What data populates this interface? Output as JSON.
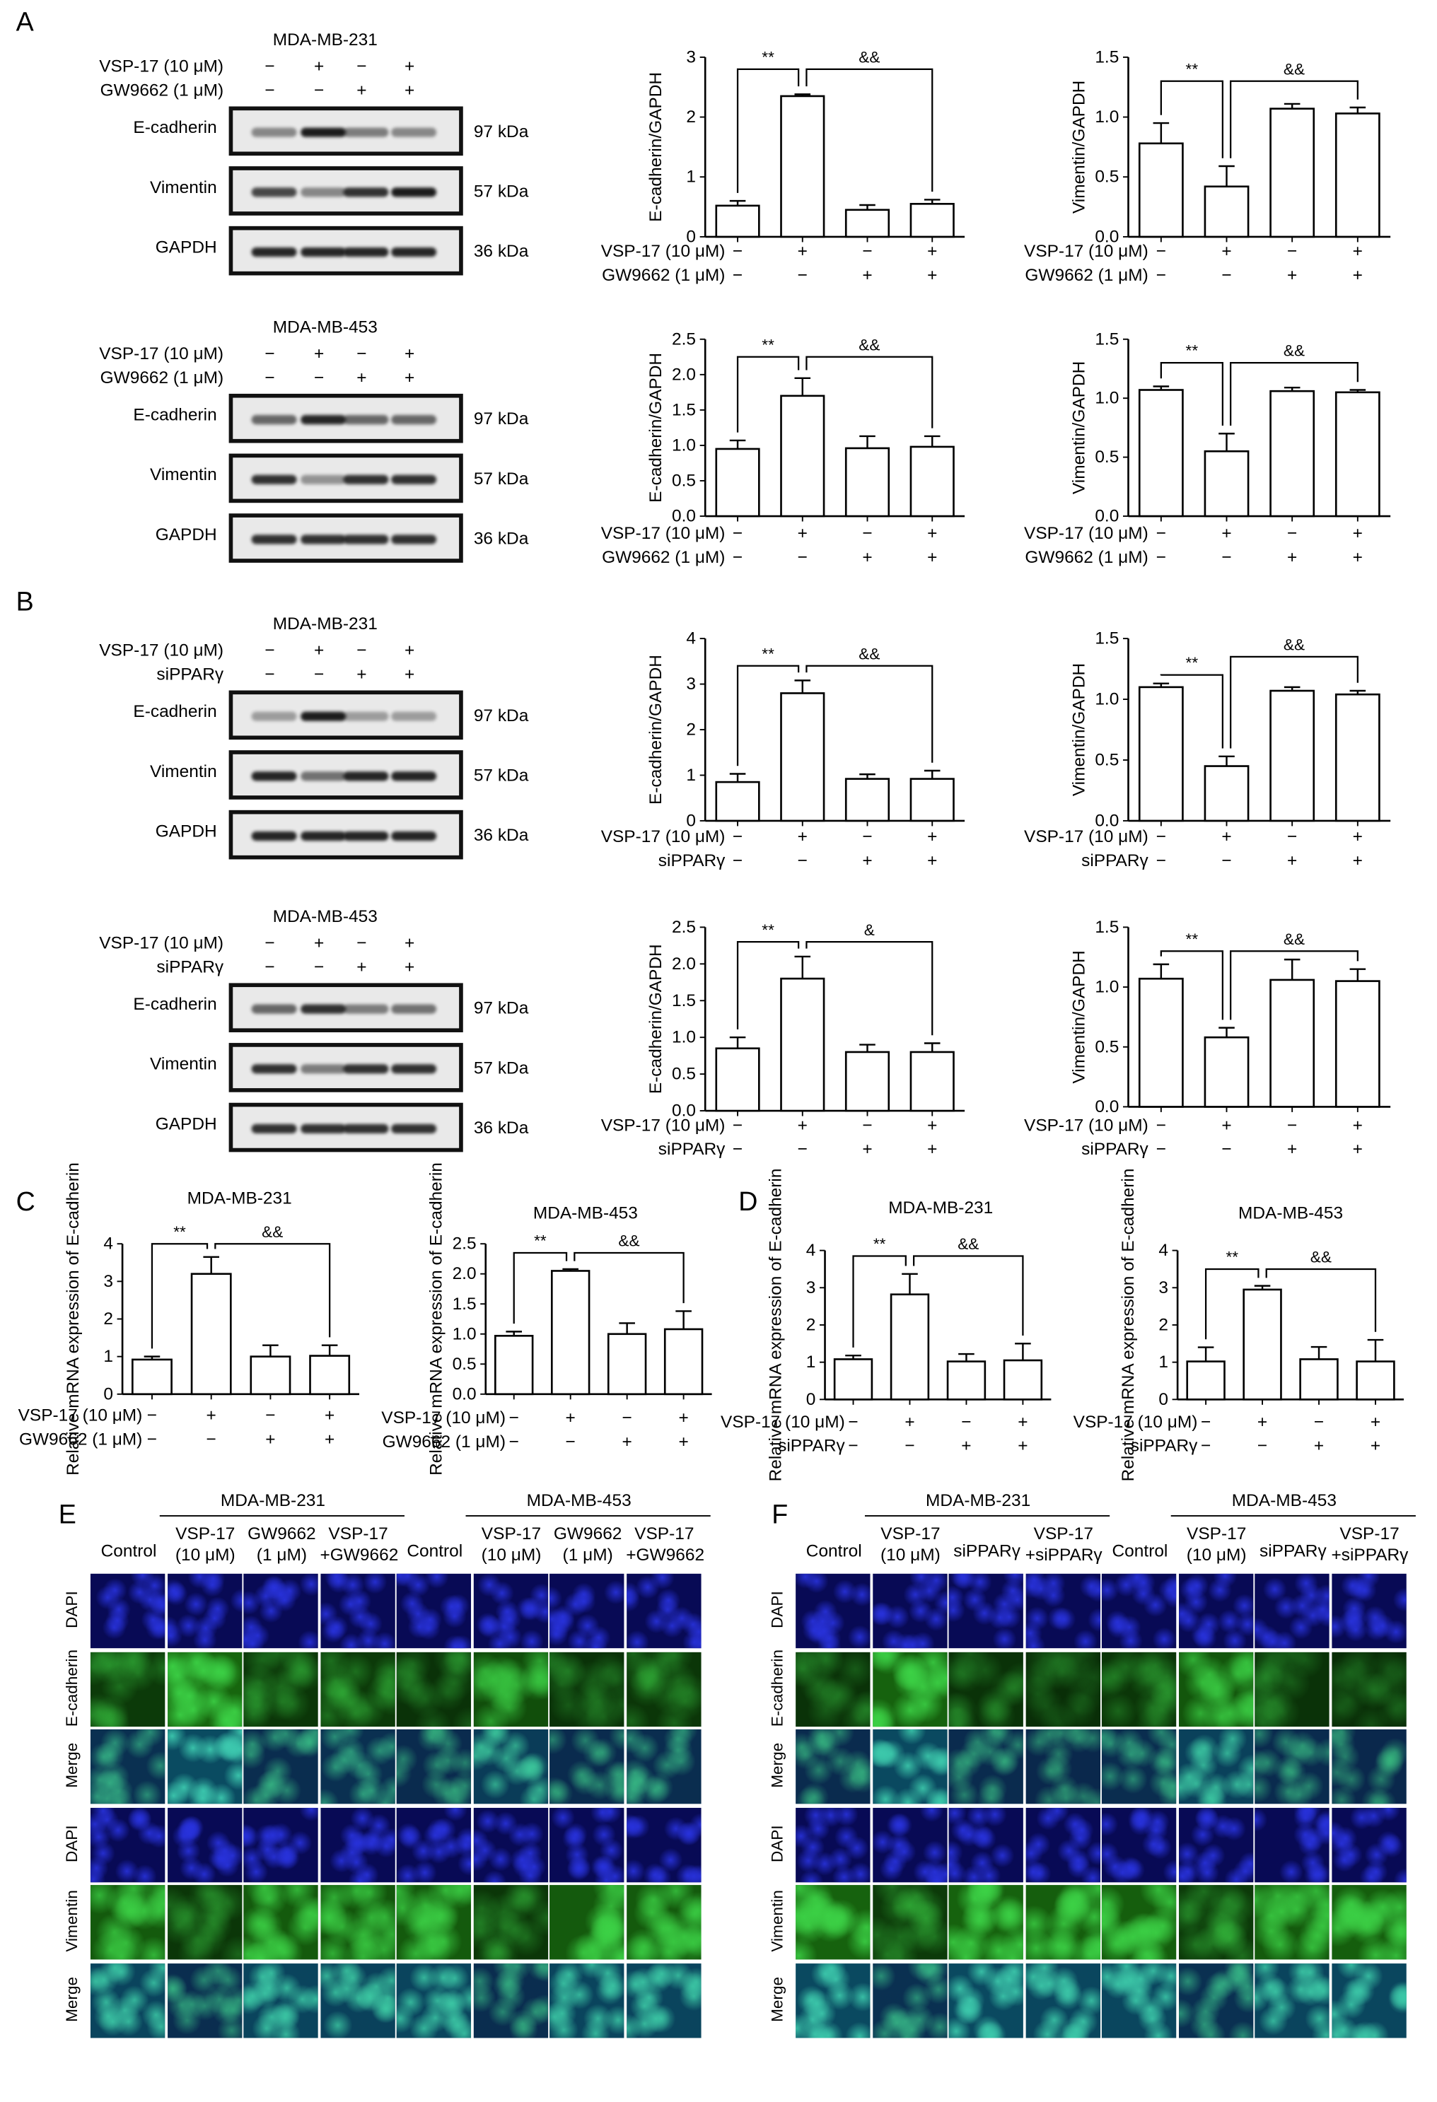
{
  "panel_letters": {
    "A": "A",
    "B": "B",
    "C": "C",
    "D": "D",
    "E": "E",
    "F": "F"
  },
  "blots": [
    {
      "title": "MDA-MB-231",
      "rows": [
        {
          "label": "VSP-17 (10 μM)",
          "signs": [
            "−",
            "+",
            "−",
            "+"
          ]
        },
        {
          "label": "GW9662 (1 μM)",
          "signs": [
            "−",
            "−",
            "+",
            "+"
          ]
        }
      ],
      "bands": [
        {
          "label": "E-cadherin",
          "kda": "97 kDa",
          "intensity": [
            0.45,
            0.95,
            0.5,
            0.45
          ]
        },
        {
          "label": "Vimentin",
          "kda": "57 kDa",
          "intensity": [
            0.75,
            0.45,
            0.85,
            0.95
          ]
        },
        {
          "label": "GAPDH",
          "kda": "36 kDa",
          "intensity": [
            0.9,
            0.9,
            0.9,
            0.9
          ]
        }
      ]
    },
    {
      "title": "MDA-MB-453",
      "rows": [
        {
          "label": "VSP-17 (10 μM)",
          "signs": [
            "−",
            "+",
            "−",
            "+"
          ]
        },
        {
          "label": "GW9662 (1 μM)",
          "signs": [
            "−",
            "−",
            "+",
            "+"
          ]
        }
      ],
      "bands": [
        {
          "label": "E-cadherin",
          "kda": "97 kDa",
          "intensity": [
            0.6,
            0.9,
            0.6,
            0.6
          ]
        },
        {
          "label": "Vimentin",
          "kda": "57 kDa",
          "intensity": [
            0.85,
            0.4,
            0.85,
            0.85
          ]
        },
        {
          "label": "GAPDH",
          "kda": "36 kDa",
          "intensity": [
            0.85,
            0.85,
            0.85,
            0.85
          ]
        }
      ]
    },
    {
      "title": "MDA-MB-231",
      "rows": [
        {
          "label": "VSP-17 (10 μM)",
          "signs": [
            "−",
            "+",
            "−",
            "+"
          ]
        },
        {
          "label": "siPPARγ",
          "signs": [
            "−",
            "−",
            "+",
            "+"
          ]
        }
      ],
      "bands": [
        {
          "label": "E-cadherin",
          "kda": "97 kDa",
          "intensity": [
            0.35,
            0.95,
            0.35,
            0.35
          ]
        },
        {
          "label": "Vimentin",
          "kda": "57 kDa",
          "intensity": [
            0.9,
            0.55,
            0.9,
            0.9
          ]
        },
        {
          "label": "GAPDH",
          "kda": "36 kDa",
          "intensity": [
            0.9,
            0.9,
            0.9,
            0.9
          ]
        }
      ]
    },
    {
      "title": "MDA-MB-453",
      "rows": [
        {
          "label": "VSP-17 (10 μM)",
          "signs": [
            "−",
            "+",
            "−",
            "+"
          ]
        },
        {
          "label": "siPPARγ",
          "signs": [
            "−",
            "−",
            "+",
            "+"
          ]
        }
      ],
      "bands": [
        {
          "label": "E-cadherin",
          "kda": "97 kDa",
          "intensity": [
            0.6,
            0.85,
            0.5,
            0.55
          ]
        },
        {
          "label": "Vimentin",
          "kda": "57 kDa",
          "intensity": [
            0.85,
            0.5,
            0.85,
            0.85
          ]
        },
        {
          "label": "GAPDH",
          "kda": "36 kDa",
          "intensity": [
            0.85,
            0.85,
            0.85,
            0.85
          ]
        }
      ]
    }
  ],
  "chart_data": [
    {
      "type": "bar",
      "panel": "A",
      "ylabel": "E-cadherin/GAPDH",
      "ylim": [
        0,
        3
      ],
      "yticks": [
        "0",
        "1",
        "2",
        "3"
      ],
      "values": [
        0.52,
        2.35,
        0.45,
        0.55
      ],
      "errors": [
        0.08,
        0.03,
        0.08,
        0.07
      ],
      "rows": [
        {
          "label": "VSP-17 (10 μM)",
          "signs": [
            "−",
            "+",
            "−",
            "+"
          ]
        },
        {
          "label": "GW9662 (1 μM)",
          "signs": [
            "−",
            "−",
            "+",
            "+"
          ]
        }
      ],
      "sig": [
        {
          "text": "**",
          "from": 0,
          "to": 1,
          "y": 2.8
        },
        {
          "text": "&&",
          "from": 1,
          "to": 3,
          "y": 2.8
        }
      ]
    },
    {
      "type": "bar",
      "panel": "A",
      "ylabel": "Vimentin/GAPDH",
      "ylim": [
        0,
        1.5
      ],
      "yticks": [
        "0.0",
        "0.5",
        "1.0",
        "1.5"
      ],
      "values": [
        0.78,
        0.42,
        1.07,
        1.03
      ],
      "errors": [
        0.17,
        0.17,
        0.04,
        0.05
      ],
      "rows": [
        {
          "label": "VSP-17 (10 μM)",
          "signs": [
            "−",
            "+",
            "−",
            "+"
          ]
        },
        {
          "label": "GW9662 (1 μM)",
          "signs": [
            "−",
            "−",
            "+",
            "+"
          ]
        }
      ],
      "sig": [
        {
          "text": "**",
          "from": 0,
          "to": 1,
          "y": 1.3
        },
        {
          "text": "&&",
          "from": 1,
          "to": 3,
          "y": 1.3
        }
      ]
    },
    {
      "type": "bar",
      "panel": "A",
      "ylabel": "E-cadherin/GAPDH",
      "ylim": [
        0,
        2.5
      ],
      "yticks": [
        "0.0",
        "0.5",
        "1.0",
        "1.5",
        "2.0",
        "2.5"
      ],
      "values": [
        0.95,
        1.7,
        0.96,
        0.98
      ],
      "errors": [
        0.12,
        0.25,
        0.17,
        0.15
      ],
      "rows": [
        {
          "label": "VSP-17 (10 μM)",
          "signs": [
            "−",
            "+",
            "−",
            "+"
          ]
        },
        {
          "label": "GW9662 (1 μM)",
          "signs": [
            "−",
            "−",
            "+",
            "+"
          ]
        }
      ],
      "sig": [
        {
          "text": "**",
          "from": 0,
          "to": 1,
          "y": 2.25
        },
        {
          "text": "&&",
          "from": 1,
          "to": 3,
          "y": 2.25
        }
      ]
    },
    {
      "type": "bar",
      "panel": "A",
      "ylabel": "Vimentin/GAPDH",
      "ylim": [
        0,
        1.5
      ],
      "yticks": [
        "0.0",
        "0.5",
        "1.0",
        "1.5"
      ],
      "values": [
        1.07,
        0.55,
        1.06,
        1.05
      ],
      "errors": [
        0.03,
        0.15,
        0.03,
        0.02
      ],
      "rows": [
        {
          "label": "VSP-17 (10 μM)",
          "signs": [
            "−",
            "+",
            "−",
            "+"
          ]
        },
        {
          "label": "GW9662 (1 μM)",
          "signs": [
            "−",
            "−",
            "+",
            "+"
          ]
        }
      ],
      "sig": [
        {
          "text": "**",
          "from": 0,
          "to": 1,
          "y": 1.3
        },
        {
          "text": "&&",
          "from": 1,
          "to": 3,
          "y": 1.3
        }
      ]
    },
    {
      "type": "bar",
      "panel": "B",
      "ylabel": "E-cadherin/GAPDH",
      "ylim": [
        0,
        4
      ],
      "yticks": [
        "0",
        "1",
        "2",
        "3",
        "4"
      ],
      "values": [
        0.85,
        2.8,
        0.92,
        0.92
      ],
      "errors": [
        0.18,
        0.28,
        0.1,
        0.18
      ],
      "rows": [
        {
          "label": "VSP-17 (10 μM)",
          "signs": [
            "−",
            "+",
            "−",
            "+"
          ]
        },
        {
          "label": "siPPARγ",
          "signs": [
            "−",
            "−",
            "+",
            "+"
          ]
        }
      ],
      "sig": [
        {
          "text": "**",
          "from": 0,
          "to": 1,
          "y": 3.4
        },
        {
          "text": "&&",
          "from": 1,
          "to": 3,
          "y": 3.4
        }
      ]
    },
    {
      "type": "bar",
      "panel": "B",
      "ylabel": "Vimentin/GAPDH",
      "ylim": [
        0,
        1.5
      ],
      "yticks": [
        "0.0",
        "0.5",
        "1.0",
        "1.5"
      ],
      "values": [
        1.1,
        0.45,
        1.07,
        1.04
      ],
      "errors": [
        0.03,
        0.08,
        0.03,
        0.03
      ],
      "rows": [
        {
          "label": "VSP-17 (10 μM)",
          "signs": [
            "−",
            "+",
            "−",
            "+"
          ]
        },
        {
          "label": "siPPARγ",
          "signs": [
            "−",
            "−",
            "+",
            "+"
          ]
        }
      ],
      "sig": [
        {
          "text": "**",
          "from": 0,
          "to": 1,
          "y": 1.2
        },
        {
          "text": "&&",
          "from": 1,
          "to": 3,
          "y": 1.35
        }
      ]
    },
    {
      "type": "bar",
      "panel": "B",
      "ylabel": "E-cadherin/GAPDH",
      "ylim": [
        0,
        2.5
      ],
      "yticks": [
        "0.0",
        "0.5",
        "1.0",
        "1.5",
        "2.0",
        "2.5"
      ],
      "values": [
        0.85,
        1.8,
        0.8,
        0.8
      ],
      "errors": [
        0.15,
        0.3,
        0.1,
        0.12
      ],
      "rows": [
        {
          "label": "VSP-17 (10 μM)",
          "signs": [
            "−",
            "+",
            "−",
            "+"
          ]
        },
        {
          "label": "siPPARγ",
          "signs": [
            "−",
            "−",
            "+",
            "+"
          ]
        }
      ],
      "sig": [
        {
          "text": "**",
          "from": 0,
          "to": 1,
          "y": 2.3
        },
        {
          "text": "&",
          "from": 1,
          "to": 3,
          "y": 2.3
        }
      ]
    },
    {
      "type": "bar",
      "panel": "B",
      "ylabel": "Vimentin/GAPDH",
      "ylim": [
        0,
        1.5
      ],
      "yticks": [
        "0.0",
        "0.5",
        "1.0",
        "1.5"
      ],
      "values": [
        1.07,
        0.58,
        1.06,
        1.05
      ],
      "errors": [
        0.12,
        0.08,
        0.17,
        0.1
      ],
      "rows": [
        {
          "label": "VSP-17 (10 μM)",
          "signs": [
            "−",
            "+",
            "−",
            "+"
          ]
        },
        {
          "label": "siPPARγ",
          "signs": [
            "−",
            "−",
            "+",
            "+"
          ]
        }
      ],
      "sig": [
        {
          "text": "**",
          "from": 0,
          "to": 1,
          "y": 1.3
        },
        {
          "text": "&&",
          "from": 1,
          "to": 3,
          "y": 1.3
        }
      ]
    },
    {
      "type": "bar",
      "panel": "C",
      "title": "MDA-MB-231",
      "ylabel": "Relative mRNA expression of E-cadherin",
      "ylim": [
        0,
        4
      ],
      "yticks": [
        "0",
        "1",
        "2",
        "3",
        "4"
      ],
      "values": [
        0.92,
        3.2,
        1.0,
        1.02
      ],
      "errors": [
        0.08,
        0.45,
        0.3,
        0.28
      ],
      "rows": [
        {
          "label": "VSP-17 (10 μM)",
          "signs": [
            "−",
            "+",
            "−",
            "+"
          ]
        },
        {
          "label": "GW9662 (1 μM)",
          "signs": [
            "−",
            "−",
            "+",
            "+"
          ]
        }
      ],
      "sig": [
        {
          "text": "**",
          "from": 0,
          "to": 1,
          "y": 4.0
        },
        {
          "text": "&&",
          "from": 1,
          "to": 3,
          "y": 4.0
        }
      ]
    },
    {
      "type": "bar",
      "panel": "C",
      "title": "MDA-MB-453",
      "ylabel": "Relative mRNA expression of E-cadherin",
      "ylim": [
        0,
        2.5
      ],
      "yticks": [
        "0.0",
        "0.5",
        "1.0",
        "1.5",
        "2.0",
        "2.5"
      ],
      "values": [
        0.97,
        2.05,
        1.0,
        1.08
      ],
      "errors": [
        0.07,
        0.03,
        0.18,
        0.3
      ],
      "rows": [
        {
          "label": "VSP-17 (10 μM)",
          "signs": [
            "−",
            "+",
            "−",
            "+"
          ]
        },
        {
          "label": "GW9662 (1 μM)",
          "signs": [
            "−",
            "−",
            "+",
            "+"
          ]
        }
      ],
      "sig": [
        {
          "text": "**",
          "from": 0,
          "to": 1,
          "y": 2.35
        },
        {
          "text": "&&",
          "from": 1,
          "to": 3,
          "y": 2.35
        }
      ]
    },
    {
      "type": "bar",
      "panel": "D",
      "title": "MDA-MB-231",
      "ylabel": "Relative mRNA expression of E-cadherin",
      "ylim": [
        0,
        4
      ],
      "yticks": [
        "0",
        "1",
        "2",
        "3",
        "4"
      ],
      "values": [
        1.08,
        2.82,
        1.02,
        1.05
      ],
      "errors": [
        0.1,
        0.55,
        0.2,
        0.45
      ],
      "rows": [
        {
          "label": "VSP-17 (10 μM)",
          "signs": [
            "−",
            "+",
            "−",
            "+"
          ]
        },
        {
          "label": "siPPARγ",
          "signs": [
            "−",
            "−",
            "+",
            "+"
          ]
        }
      ],
      "sig": [
        {
          "text": "**",
          "from": 0,
          "to": 1,
          "y": 3.85
        },
        {
          "text": "&&",
          "from": 1,
          "to": 3,
          "y": 3.85
        }
      ]
    },
    {
      "type": "bar",
      "panel": "D",
      "title": "MDA-MB-453",
      "ylabel": "Relative mRNA expression of E-cadherin",
      "ylim": [
        0,
        4
      ],
      "yticks": [
        "0",
        "1",
        "2",
        "3",
        "4"
      ],
      "values": [
        1.02,
        2.95,
        1.08,
        1.02
      ],
      "errors": [
        0.38,
        0.1,
        0.33,
        0.58
      ],
      "rows": [
        {
          "label": "VSP-17 (10 μM)",
          "signs": [
            "−",
            "+",
            "−",
            "+"
          ]
        },
        {
          "label": "siPPARγ",
          "signs": [
            "−",
            "−",
            "+",
            "+"
          ]
        }
      ],
      "sig": [
        {
          "text": "**",
          "from": 0,
          "to": 1,
          "y": 3.5
        },
        {
          "text": "&&",
          "from": 1,
          "to": 3,
          "y": 3.5
        }
      ]
    }
  ],
  "microscopy": [
    {
      "groups": [
        "MDA-MB-231",
        "MDA-MB-453"
      ],
      "columns": [
        "Control",
        "VSP-17\n(10 μM)",
        "GW9662\n(1 μM)",
        "VSP-17\n+GW9662",
        "Control",
        "VSP-17\n(10 μM)",
        "GW9662\n(1 μM)",
        "VSP-17\n+GW9662"
      ],
      "rows": [
        "DAPI",
        "E-cadherin",
        "Merge",
        "DAPI",
        "Vimentin",
        "Merge"
      ],
      "ecad_intensity": [
        0.35,
        0.9,
        0.3,
        0.35,
        0.25,
        0.6,
        0.25,
        0.3
      ],
      "vim_intensity": [
        0.75,
        0.3,
        0.75,
        0.7,
        0.75,
        0.3,
        0.75,
        0.75
      ]
    },
    {
      "groups": [
        "MDA-MB-231",
        "MDA-MB-453"
      ],
      "columns": [
        "Control",
        "VSP-17\n(10 μM)",
        "siPPARγ",
        "VSP-17\n+siPPARγ",
        "Control",
        "VSP-17\n(10 μM)",
        "siPPARγ",
        "VSP-17\n+siPPARγ"
      ],
      "rows": [
        "DAPI",
        "E-cadherin",
        "Merge",
        "DAPI",
        "Vimentin",
        "Merge"
      ],
      "ecad_intensity": [
        0.25,
        0.85,
        0.25,
        0.2,
        0.3,
        0.7,
        0.25,
        0.2
      ],
      "vim_intensity": [
        0.85,
        0.35,
        0.85,
        0.8,
        0.8,
        0.35,
        0.75,
        0.8
      ]
    }
  ],
  "colors": {
    "dapi": "#1a1fb8",
    "green": "#2fc63a",
    "background": "#ffffff"
  }
}
